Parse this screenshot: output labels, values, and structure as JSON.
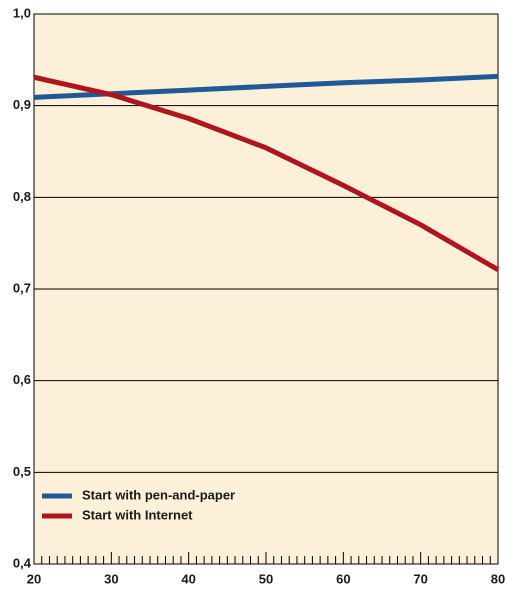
{
  "chart_data": {
    "type": "line",
    "x": [
      20,
      30,
      40,
      50,
      60,
      70,
      80
    ],
    "series": [
      {
        "name": "Start with pen-and-paper",
        "color": "#1f5a99",
        "values": [
          0.909,
          0.913,
          0.917,
          0.921,
          0.925,
          0.928,
          0.932
        ]
      },
      {
        "name": "Start with Internet",
        "color": "#b0141c",
        "values": [
          0.931,
          0.912,
          0.886,
          0.854,
          0.813,
          0.77,
          0.721
        ]
      }
    ],
    "xlim": [
      20,
      80
    ],
    "xticks": [
      20,
      30,
      40,
      50,
      60,
      70,
      80
    ],
    "ylim": [
      0.4,
      1.0
    ],
    "yticks": [
      {
        "value": 0.4,
        "label": "0,4"
      },
      {
        "value": 0.5,
        "label": "0,5"
      },
      {
        "value": 0.6,
        "label": "0,6"
      },
      {
        "value": 0.7,
        "label": "0,7"
      },
      {
        "value": 0.8,
        "label": "0,8"
      },
      {
        "value": 0.9,
        "label": "0,9"
      },
      {
        "value": 1.0,
        "label": "1,0"
      }
    ],
    "grid": true,
    "legend": "lower left",
    "background": "#fdf0d8"
  }
}
